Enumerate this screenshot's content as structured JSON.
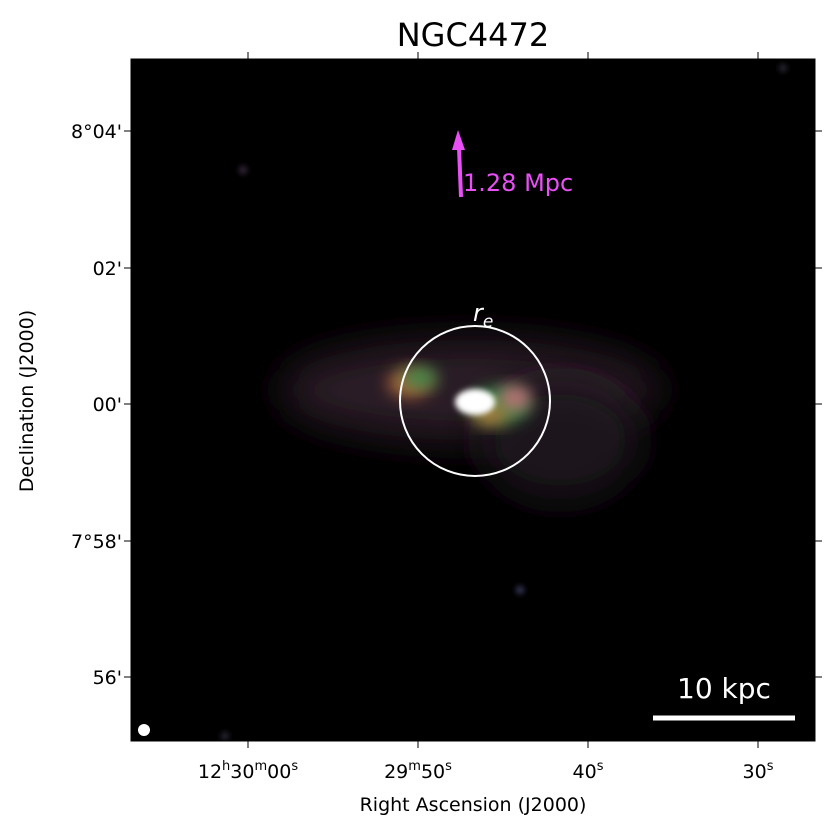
{
  "title": "NGC4472",
  "x_axis": {
    "label": "Right Ascension (J2000)",
    "ticks": [
      [
        "12",
        "h",
        "30",
        "m",
        "00",
        "s"
      ],
      [
        "29",
        "m",
        "50",
        "s"
      ],
      [
        "40",
        "s"
      ],
      [
        "30",
        "s"
      ]
    ]
  },
  "y_axis": {
    "label": "Declination (J2000)",
    "ticks": [
      "8°04'",
      "02'",
      "00'",
      "7°58'",
      "56'"
    ]
  },
  "annotations": {
    "arrow_label": "1.28 Mpc",
    "circle_label": [
      "r",
      "e"
    ],
    "scale_bar": "10 kpc"
  }
}
